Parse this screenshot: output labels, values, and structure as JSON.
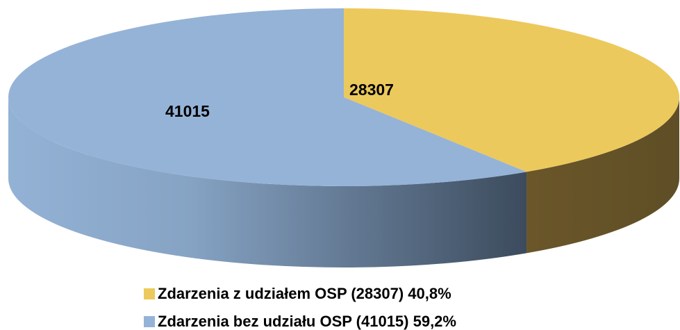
{
  "chart_data": {
    "type": "pie",
    "categories": [
      "Zdarzenia z udziałem OSP (28307) 40,8%",
      "Zdarzenia bez udziału OSP (41015) 59,2%"
    ],
    "values": [
      28307,
      41015
    ],
    "colors": [
      "#ecc95c",
      "#95b3d7"
    ],
    "legend": "bottom"
  }
}
